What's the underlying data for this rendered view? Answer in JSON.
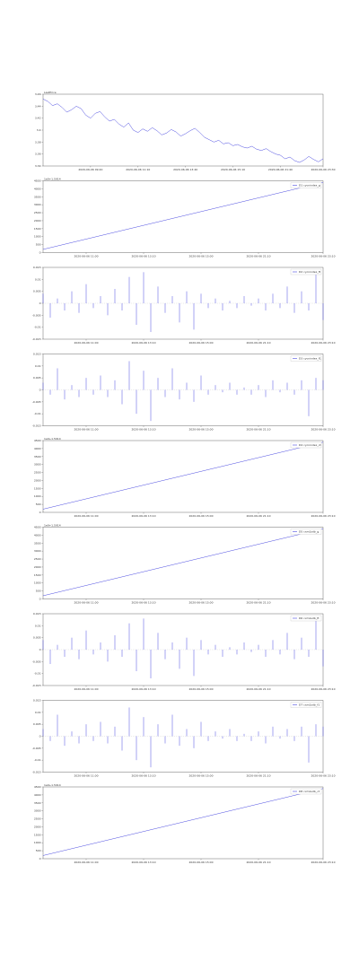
{
  "chart_data": [
    {
      "type": "line",
      "title": "LastPrice",
      "x": [
        0,
        1,
        2,
        3,
        4,
        5,
        6,
        7,
        8,
        9,
        10,
        11,
        12,
        13,
        14,
        15,
        16,
        17,
        18,
        19,
        20,
        21,
        22,
        23,
        24,
        25,
        26,
        27,
        28,
        29,
        30,
        31,
        32,
        33,
        34,
        35,
        36,
        37,
        38,
        39,
        40,
        41,
        42,
        43,
        44,
        45,
        46,
        47,
        48,
        49,
        50,
        51,
        52,
        53,
        54,
        55,
        56,
        57,
        58,
        59
      ],
      "series": [
        {
          "name": "LastPrice",
          "color": "#4a4ae0",
          "values": [
            3.452,
            3.448,
            3.441,
            3.444,
            3.438,
            3.43,
            3.434,
            3.44,
            3.436,
            3.425,
            3.42,
            3.428,
            3.431,
            3.422,
            3.415,
            3.418,
            3.41,
            3.405,
            3.412,
            3.4,
            3.396,
            3.402,
            3.398,
            3.404,
            3.399,
            3.392,
            3.395,
            3.401,
            3.397,
            3.39,
            3.394,
            3.399,
            3.403,
            3.396,
            3.388,
            3.384,
            3.38,
            3.383,
            3.377,
            3.379,
            3.374,
            3.376,
            3.372,
            3.37,
            3.373,
            3.368,
            3.366,
            3.369,
            3.364,
            3.36,
            3.358,
            3.352,
            3.355,
            3.349,
            3.346,
            3.35,
            3.356,
            3.351,
            3.347,
            3.352
          ]
        }
      ],
      "xlim": [
        0,
        59
      ],
      "ylim": [
        3.34,
        3.46
      ],
      "yticks": [
        3.34,
        3.36,
        3.38,
        3.4,
        3.42,
        3.44,
        3.46
      ],
      "xticks": [
        {
          "value": 10,
          "label": "2020-06-06 09:20"
        },
        {
          "value": 20,
          "label": "2020-06-06 11:10"
        },
        {
          "value": 30,
          "label": "2020-06-06 13:40"
        },
        {
          "value": 40,
          "label": "2020-06-06 15:10"
        },
        {
          "value": 50,
          "label": "2020-06-06 21:40"
        },
        {
          "value": 59,
          "label": "2020-06-06 23:30"
        }
      ]
    },
    {
      "type": "line",
      "offset_text": "1e9+1.5914",
      "x": [
        0,
        39
      ],
      "series": [
        {
          "name": "D1 cycnindex_g",
          "color": "#4a4ae0",
          "values": [
            200,
            4400
          ]
        }
      ],
      "xlim": [
        0,
        39
      ],
      "ylim": [
        0,
        4500
      ],
      "yticks": [
        0,
        500,
        1000,
        1500,
        2000,
        2500,
        3000,
        3500,
        4000,
        4500
      ],
      "legend": "upper right",
      "xticks": [
        {
          "value": 6,
          "label": "2020-06-06 11:00"
        },
        {
          "value": 14,
          "label": "2020-06-06 13:10"
        },
        {
          "value": 22,
          "label": "2020-06-06 15:00"
        },
        {
          "value": 30,
          "label": "2020-06-06 21:10"
        },
        {
          "value": 39,
          "label": "2020-06-06 23:10"
        }
      ]
    },
    {
      "type": "stem",
      "x": [
        0,
        1,
        2,
        3,
        4,
        5,
        6,
        7,
        8,
        9,
        10,
        11,
        12,
        13,
        14,
        15,
        16,
        17,
        18,
        19,
        20,
        21,
        22,
        23,
        24,
        25,
        26,
        27,
        28,
        29,
        30,
        31,
        32,
        33,
        34,
        35,
        36,
        37,
        38,
        39
      ],
      "series": [
        {
          "name": "D2 cycnindex_ft",
          "color": "#4a4ae0",
          "values": [
            0.004,
            -0.006,
            0.002,
            -0.003,
            0.005,
            -0.004,
            0.008,
            -0.002,
            0.003,
            -0.005,
            0.006,
            -0.003,
            0.011,
            -0.009,
            0.013,
            -0.012,
            0.007,
            -0.004,
            0.003,
            -0.008,
            0.005,
            -0.011,
            0.004,
            -0.002,
            0.002,
            -0.003,
            0.001,
            -0.002,
            0.003,
            -0.001,
            0.002,
            -0.003,
            0.004,
            -0.002,
            0.007,
            -0.004,
            0.005,
            -0.003,
            0.012,
            -0.007
          ]
        }
      ],
      "xlim": [
        0,
        39
      ],
      "ylim": [
        -0.015,
        0.015
      ],
      "yticks": [
        -0.015,
        -0.01,
        -0.005,
        0,
        0.005,
        0.01,
        0.015
      ],
      "legend": "upper right",
      "xticks": [
        {
          "value": 6,
          "label": "2020-06-06 11:00"
        },
        {
          "value": 14,
          "label": "2020-06-06 13:10"
        },
        {
          "value": 22,
          "label": "2020-06-06 15:00"
        },
        {
          "value": 30,
          "label": "2020-06-06 21:10"
        },
        {
          "value": 39,
          "label": "2020-06-06 23:10"
        }
      ]
    },
    {
      "type": "stem",
      "x": [
        0,
        1,
        2,
        3,
        4,
        5,
        6,
        7,
        8,
        9,
        10,
        11,
        12,
        13,
        14,
        15,
        16,
        17,
        18,
        19,
        20,
        21,
        22,
        23,
        24,
        25,
        26,
        27,
        28,
        29,
        30,
        31,
        32,
        33,
        34,
        35,
        36,
        37,
        38,
        39
      ],
      "series": [
        {
          "name": "D3 cycnindex_f1",
          "color": "#4a4ae0",
          "values": [
            0.003,
            -0.002,
            0.009,
            -0.004,
            0.002,
            -0.003,
            0.005,
            -0.002,
            0.006,
            -0.003,
            0.004,
            -0.006,
            0.012,
            -0.01,
            0.008,
            -0.013,
            0.005,
            -0.003,
            0.009,
            -0.004,
            0.003,
            -0.005,
            0.006,
            -0.002,
            0.002,
            -0.001,
            0.003,
            -0.002,
            0.001,
            -0.002,
            0.002,
            -0.003,
            0.004,
            -0.001,
            0.003,
            -0.002,
            0.004,
            -0.011,
            0.005,
            0.004
          ]
        }
      ],
      "xlim": [
        0,
        39
      ],
      "ylim": [
        -0.015,
        0.015
      ],
      "yticks": [
        -0.015,
        -0.01,
        -0.005,
        0,
        0.005,
        0.01,
        0.015
      ],
      "legend": "upper right",
      "xticks": [
        {
          "value": 6,
          "label": "2020-06-06 11:00"
        },
        {
          "value": 14,
          "label": "2020-06-06 13:10"
        },
        {
          "value": 22,
          "label": "2020-06-06 15:00"
        },
        {
          "value": 30,
          "label": "2020-06-06 21:10"
        },
        {
          "value": 39,
          "label": "2020-06-06 23:10"
        }
      ]
    },
    {
      "type": "line",
      "offset_text": "1e9+1.5914",
      "x": [
        0,
        39
      ],
      "series": [
        {
          "name": "D4 cycnindex_ct",
          "color": "#4a4ae0",
          "values": [
            200,
            4400
          ]
        }
      ],
      "xlim": [
        0,
        39
      ],
      "ylim": [
        0,
        4500
      ],
      "yticks": [
        0,
        500,
        1000,
        1500,
        2000,
        2500,
        3000,
        3500,
        4000,
        4500
      ],
      "legend": "upper right",
      "xticks": [
        {
          "value": 6,
          "label": "2020-06-06 11:00"
        },
        {
          "value": 14,
          "label": "2020-06-06 13:10"
        },
        {
          "value": 22,
          "label": "2020-06-06 15:00"
        },
        {
          "value": 30,
          "label": "2020-06-06 21:10"
        },
        {
          "value": 39,
          "label": "2020-06-06 23:10"
        }
      ]
    },
    {
      "type": "line",
      "offset_text": "1e9+1.5914",
      "x": [
        0,
        39
      ],
      "series": [
        {
          "name": "D5 cxm1sdb_g",
          "color": "#4a4ae0",
          "values": [
            200,
            4400
          ]
        }
      ],
      "xlim": [
        0,
        39
      ],
      "ylim": [
        0,
        4500
      ],
      "yticks": [
        0,
        500,
        1000,
        1500,
        2000,
        2500,
        3000,
        3500,
        4000,
        4500
      ],
      "legend": "upper right",
      "xticks": [
        {
          "value": 6,
          "label": "2020-06-06 11:00"
        },
        {
          "value": 14,
          "label": "2020-06-06 13:10"
        },
        {
          "value": 22,
          "label": "2020-06-06 15:00"
        },
        {
          "value": 30,
          "label": "2020-06-06 21:10"
        },
        {
          "value": 39,
          "label": "2020-06-06 23:10"
        }
      ]
    },
    {
      "type": "stem",
      "x": [
        0,
        1,
        2,
        3,
        4,
        5,
        6,
        7,
        8,
        9,
        10,
        11,
        12,
        13,
        14,
        15,
        16,
        17,
        18,
        19,
        20,
        21,
        22,
        23,
        24,
        25,
        26,
        27,
        28,
        29,
        30,
        31,
        32,
        33,
        34,
        35,
        36,
        37,
        38,
        39
      ],
      "series": [
        {
          "name": "D6 cxm1sdb_ft",
          "color": "#4a4ae0",
          "values": [
            0.004,
            -0.006,
            0.002,
            -0.003,
            0.005,
            -0.004,
            0.008,
            -0.002,
            0.003,
            -0.005,
            0.006,
            -0.003,
            0.011,
            -0.009,
            0.013,
            -0.012,
            0.007,
            -0.004,
            0.003,
            -0.008,
            0.005,
            -0.011,
            0.004,
            -0.002,
            0.002,
            -0.003,
            0.001,
            -0.002,
            0.003,
            -0.001,
            0.002,
            -0.003,
            0.004,
            -0.002,
            0.007,
            -0.004,
            0.005,
            -0.003,
            0.012,
            -0.007
          ]
        }
      ],
      "xlim": [
        0,
        39
      ],
      "ylim": [
        -0.015,
        0.015
      ],
      "yticks": [
        -0.015,
        -0.01,
        -0.005,
        0,
        0.005,
        0.01,
        0.015
      ],
      "legend": "upper right",
      "xticks": [
        {
          "value": 6,
          "label": "2020-06-06 11:00"
        },
        {
          "value": 14,
          "label": "2020-06-06 13:10"
        },
        {
          "value": 22,
          "label": "2020-06-06 15:00"
        },
        {
          "value": 30,
          "label": "2020-06-06 21:10"
        },
        {
          "value": 39,
          "label": "2020-06-06 23:10"
        }
      ]
    },
    {
      "type": "stem",
      "x": [
        0,
        1,
        2,
        3,
        4,
        5,
        6,
        7,
        8,
        9,
        10,
        11,
        12,
        13,
        14,
        15,
        16,
        17,
        18,
        19,
        20,
        21,
        22,
        23,
        24,
        25,
        26,
        27,
        28,
        29,
        30,
        31,
        32,
        33,
        34,
        35,
        36,
        37,
        38,
        39
      ],
      "series": [
        {
          "name": "D7 cxm1sdb_f1",
          "color": "#4a4ae0",
          "values": [
            0.003,
            -0.002,
            0.009,
            -0.004,
            0.002,
            -0.003,
            0.005,
            -0.002,
            0.006,
            -0.003,
            0.004,
            -0.006,
            0.012,
            -0.01,
            0.008,
            -0.013,
            0.005,
            -0.003,
            0.009,
            -0.004,
            0.003,
            -0.005,
            0.006,
            -0.002,
            0.002,
            -0.001,
            0.003,
            -0.002,
            0.001,
            -0.002,
            0.002,
            -0.003,
            0.004,
            -0.001,
            0.003,
            -0.002,
            0.004,
            -0.011,
            0.005,
            0.004
          ]
        }
      ],
      "xlim": [
        0,
        39
      ],
      "ylim": [
        -0.015,
        0.015
      ],
      "yticks": [
        -0.015,
        -0.01,
        -0.005,
        0,
        0.005,
        0.01,
        0.015
      ],
      "legend": "upper right",
      "xticks": [
        {
          "value": 6,
          "label": "2020-06-06 11:00"
        },
        {
          "value": 14,
          "label": "2020-06-06 13:10"
        },
        {
          "value": 22,
          "label": "2020-06-06 15:00"
        },
        {
          "value": 30,
          "label": "2020-06-06 21:10"
        },
        {
          "value": 39,
          "label": "2020-06-06 23:10"
        }
      ]
    },
    {
      "type": "line",
      "offset_text": "1e9+1.5914",
      "x": [
        0,
        39
      ],
      "series": [
        {
          "name": "D8 cxm1sdb_ct",
          "color": "#4a4ae0",
          "values": [
            200,
            4400
          ]
        }
      ],
      "xlim": [
        0,
        39
      ],
      "ylim": [
        0,
        4500
      ],
      "yticks": [
        0,
        500,
        1000,
        1500,
        2000,
        2500,
        3000,
        3500,
        4000,
        4500
      ],
      "legend": "upper right",
      "xticks": [
        {
          "value": 6,
          "label": "2020-06-06 11:00"
        },
        {
          "value": 14,
          "label": "2020-06-06 13:10"
        },
        {
          "value": 22,
          "label": "2020-06-06 15:00"
        },
        {
          "value": 30,
          "label": "2020-06-06 21:10"
        },
        {
          "value": 39,
          "label": "2020-06-06 23:10"
        }
      ]
    }
  ]
}
